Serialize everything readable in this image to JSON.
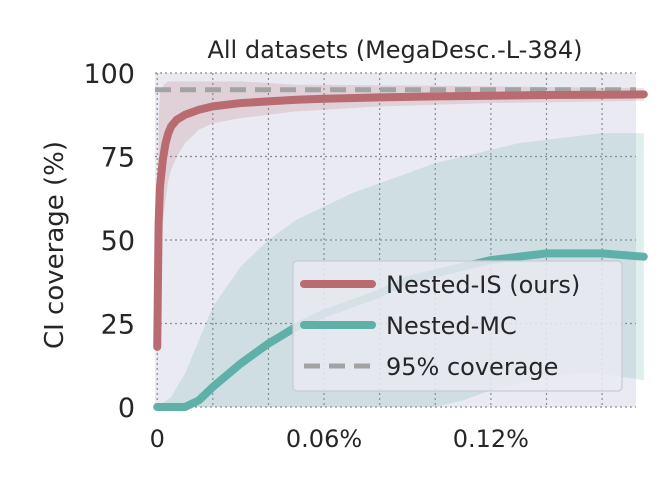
{
  "chart_data": {
    "type": "line",
    "title": "All datasets (MegaDesc.-L-384)",
    "xlabel": "",
    "ylabel": "CI coverage (%)",
    "xlim": [
      -0.0008,
      0.1722
    ],
    "ylim": [
      0,
      100
    ],
    "yticks": [
      0,
      25,
      50,
      75,
      100
    ],
    "ytick_labels": [
      "0",
      "25",
      "50",
      "75",
      "100"
    ],
    "xticks": [
      0,
      0.06,
      0.12
    ],
    "xtick_labels": [
      "0",
      "0.06%",
      "0.12%"
    ],
    "grid": true,
    "legend_position": "lower-right",
    "reference_line": {
      "name": "95% coverage",
      "y": 95,
      "color": "#a3a3a3"
    },
    "series": [
      {
        "name": "Nested-IS (ours)",
        "color": "#b86b71",
        "x": [
          0,
          0.0005,
          0.001,
          0.002,
          0.003,
          0.004,
          0.005,
          0.007,
          0.01,
          0.015,
          0.02,
          0.03,
          0.04,
          0.05,
          0.06,
          0.08,
          0.1,
          0.12,
          0.14,
          0.16,
          0.175
        ],
        "values": [
          18,
          55,
          66,
          74,
          79,
          82,
          84,
          86,
          87.5,
          89,
          90,
          91,
          91.5,
          92,
          92.3,
          92.7,
          93,
          93.2,
          93.4,
          93.5,
          93.6
        ],
        "band_low": [
          10,
          30,
          45,
          55,
          62,
          68,
          71,
          75,
          79,
          83,
          85,
          86.5,
          87.5,
          88.5,
          89,
          90,
          90.5,
          91,
          91.2,
          91.5,
          91.7
        ],
        "band_high": [
          30,
          85,
          94,
          96,
          97,
          97.5,
          97.5,
          97.5,
          97.5,
          97.5,
          97.5,
          97.5,
          97,
          96.5,
          96.5,
          96.3,
          96.2,
          96,
          95.8,
          95.6,
          95.5
        ]
      },
      {
        "name": "Nested-MC",
        "color": "#5fb0a9",
        "x": [
          0,
          0.005,
          0.01,
          0.015,
          0.02,
          0.03,
          0.04,
          0.05,
          0.06,
          0.07,
          0.08,
          0.09,
          0.1,
          0.11,
          0.12,
          0.13,
          0.14,
          0.15,
          0.16,
          0.175
        ],
        "values": [
          0,
          0,
          0,
          2,
          6,
          13,
          19,
          24,
          28,
          31,
          34,
          38,
          40,
          42,
          44,
          45,
          46,
          46,
          46,
          45
        ],
        "band_low": [
          0,
          0,
          0,
          0,
          0,
          0,
          0,
          0,
          0,
          0,
          0,
          0,
          0,
          2,
          5,
          7,
          9,
          10,
          10,
          8
        ],
        "band_high": [
          0,
          3,
          10,
          20,
          30,
          42,
          50,
          56,
          60,
          64,
          67,
          70,
          73,
          75,
          77,
          79,
          80,
          81,
          82,
          82
        ]
      }
    ]
  }
}
